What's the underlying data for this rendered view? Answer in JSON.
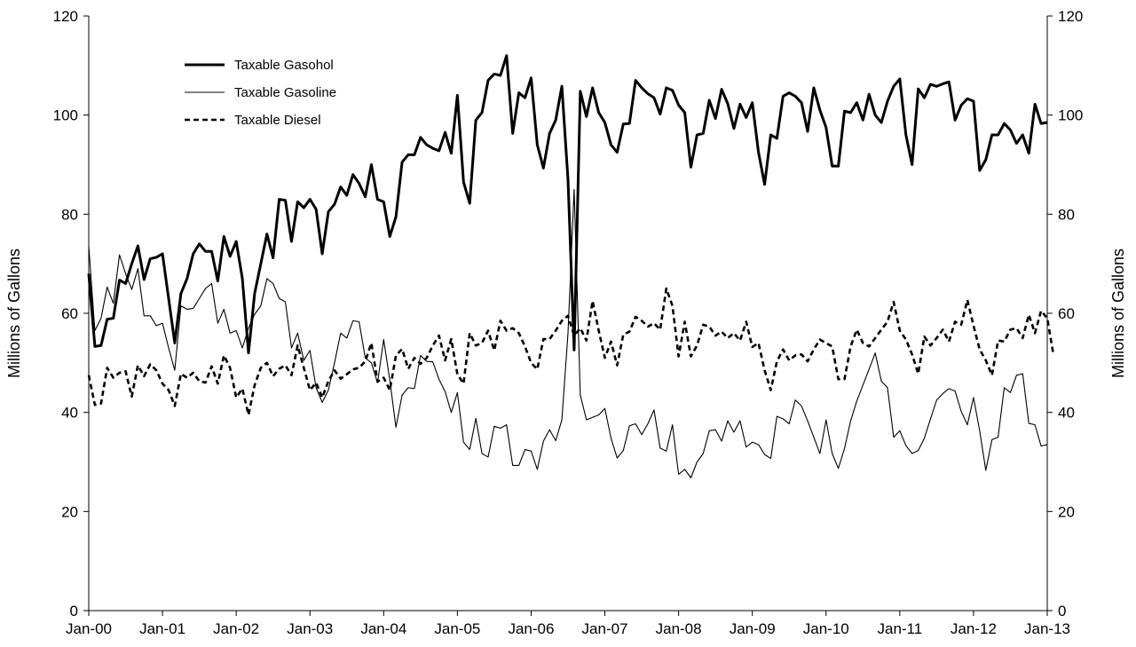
{
  "chart_data": {
    "type": "line",
    "title": "",
    "xlabel": "",
    "ylabel": "Millions of Gallons",
    "y2label": "Millions of Gallons",
    "ylim": [
      0,
      120
    ],
    "y2lim": [
      0,
      120
    ],
    "yticks": [
      0,
      20,
      40,
      60,
      80,
      100,
      120
    ],
    "grid": false,
    "legend_position": "top-left",
    "x_tick_labels": [
      "Jan-00",
      "Jan-01",
      "Jan-02",
      "Jan-03",
      "Jan-04",
      "Jan-05",
      "Jan-06",
      "Jan-07",
      "Jan-08",
      "Jan-09",
      "Jan-10",
      "Jan-11",
      "Jan-12",
      "Jan-13"
    ],
    "x_start": "Jan-00",
    "x_step": "month",
    "series": [
      {
        "name": "Taxable Gasohol",
        "style": "thick",
        "color": "#000000",
        "values": [
          68,
          53.3,
          53.5,
          58.8,
          59,
          66.7,
          66,
          70,
          73.6,
          66.8,
          71,
          71.3,
          72,
          63,
          54,
          64,
          67,
          72,
          74,
          72.5,
          72.5,
          66.5,
          75.5,
          71.5,
          74.5,
          67,
          52,
          64,
          70,
          76,
          71.2,
          83,
          82.8,
          74.5,
          82.5,
          81.3,
          83,
          81,
          72,
          80.5,
          82,
          85.5,
          83.8,
          88,
          86.2,
          83.5,
          90,
          83,
          82.5,
          75.5,
          79.5,
          90.5,
          92,
          92,
          95.5,
          94,
          93.3,
          92.8,
          96.5,
          92.3,
          104,
          86.5,
          82.2,
          99,
          100.5,
          107,
          108.3,
          108,
          112,
          96.3,
          104.5,
          103.5,
          107.5,
          94,
          89.3,
          96.3,
          99,
          105.8,
          87,
          52.6,
          104.8,
          99.7,
          105.5,
          100.5,
          98.5,
          94,
          92.5,
          98.2,
          98.3,
          107,
          105.5,
          104.3,
          103.5,
          100.2,
          105.5,
          105,
          102,
          100.5,
          89.5,
          96,
          96.3,
          103,
          99.3,
          105.2,
          102.3,
          97.3,
          102.2,
          99.5,
          102.5,
          92.5,
          86,
          96,
          95.3,
          103.8,
          104.5,
          103.8,
          102.5,
          96.7,
          105.5,
          101,
          97.5,
          89.7,
          89.7,
          100.8,
          100.5,
          102.5,
          99,
          104.2,
          100,
          98.5,
          102.8,
          105.8,
          107.3,
          96,
          90,
          105.3,
          103.5,
          106.2,
          105.8,
          106.3,
          106.7,
          99,
          102,
          103.3,
          102.8,
          88.8,
          91,
          96,
          96,
          98.3,
          97,
          94.3,
          96,
          92.3,
          102.2,
          98.3,
          98.5
        ]
      },
      {
        "name": "Taxable Gasoline",
        "style": "thin",
        "color": "#000000",
        "values": [
          73.5,
          56.5,
          59,
          65.3,
          62,
          71.8,
          68,
          64.8,
          69,
          59.5,
          59.5,
          57.5,
          58,
          53,
          48.5,
          61.5,
          60.8,
          61,
          63,
          65,
          66,
          58,
          60.8,
          56,
          56.5,
          53,
          57,
          59.8,
          61.5,
          67,
          66,
          63,
          62.3,
          53,
          56,
          50.5,
          52.5,
          45,
          42,
          44.5,
          50,
          56,
          55,
          58.5,
          58.3,
          51,
          50,
          46,
          54.7,
          46.5,
          37,
          43.5,
          45,
          44.8,
          51.5,
          50.3,
          50.2,
          46.7,
          44.2,
          40,
          44,
          34,
          32.5,
          38.8,
          31.7,
          31,
          37.2,
          36.8,
          37.5,
          29.3,
          29.3,
          32.5,
          32.2,
          28.5,
          34.2,
          36.5,
          34.3,
          38.5,
          56,
          85,
          43.5,
          38.5,
          39,
          39.5,
          40.8,
          34.8,
          30.8,
          32.3,
          37.3,
          37.7,
          35.5,
          37.7,
          40.5,
          32.8,
          32.2,
          37.5,
          27.5,
          28.5,
          26.8,
          30,
          31.7,
          36.3,
          36.5,
          34.2,
          38.3,
          36,
          38.3,
          33,
          34,
          33.5,
          31.5,
          30.7,
          39.2,
          38.7,
          37.7,
          42.5,
          41.3,
          38.3,
          35,
          31.7,
          38.5,
          31.7,
          28.7,
          32.7,
          38.3,
          42.3,
          45.5,
          48.7,
          52,
          46.3,
          45,
          35,
          36.3,
          33.3,
          31.7,
          32.3,
          34.8,
          38.7,
          42.5,
          43.8,
          44.8,
          44.3,
          40.2,
          37.5,
          43,
          36.3,
          28.3,
          34.5,
          35,
          45,
          44,
          47.5,
          47.8,
          37.8,
          37.5,
          33.2,
          33.5
        ]
      },
      {
        "name": "Taxable Diesel",
        "style": "dashed",
        "color": "#000000",
        "values": [
          47.5,
          41.5,
          41.8,
          49,
          47,
          48,
          48.3,
          43.2,
          49.5,
          47.3,
          49.7,
          48.5,
          45.8,
          44.5,
          41.3,
          47.8,
          47,
          48,
          46.3,
          46,
          49.3,
          45.8,
          51.5,
          49,
          43,
          44.8,
          39.5,
          45.5,
          49,
          50,
          47.3,
          48.8,
          49.5,
          47.5,
          53.5,
          49,
          44.5,
          46,
          43,
          46.3,
          48.5,
          46.8,
          47.7,
          48.7,
          49,
          50.3,
          54,
          46.2,
          47,
          44.5,
          51.5,
          52.8,
          48.8,
          51,
          49.8,
          51,
          53.5,
          55.5,
          50.5,
          54.8,
          47.7,
          45.8,
          56,
          53.5,
          54,
          56.5,
          52.5,
          58.5,
          56.5,
          57,
          56,
          53.3,
          50,
          48.7,
          54.8,
          54.8,
          56.5,
          58.5,
          59.5,
          55.5,
          57,
          54.5,
          62.5,
          56.5,
          51,
          54.3,
          49.5,
          55.7,
          56.3,
          59.3,
          58.5,
          57.3,
          58,
          56.7,
          65,
          61.5,
          51.3,
          58.3,
          51.3,
          53.5,
          57.7,
          57.3,
          55.5,
          56.3,
          55,
          56,
          54.5,
          58.3,
          53.2,
          54,
          48.5,
          44.5,
          50.3,
          52.7,
          50.5,
          51.5,
          51.7,
          50.3,
          52.7,
          54.7,
          54,
          53.3,
          46.7,
          46.7,
          53.3,
          56.7,
          54,
          53.3,
          55,
          56.7,
          58.3,
          62.3,
          56.5,
          54.7,
          51.7,
          47.8,
          55.3,
          53.5,
          55,
          56.7,
          54.3,
          58.3,
          57.7,
          62.7,
          57.5,
          52.7,
          50.5,
          47.5,
          54.5,
          54.3,
          56.7,
          57,
          55,
          59.7,
          56,
          60.5,
          59,
          51.7
        ]
      }
    ]
  }
}
